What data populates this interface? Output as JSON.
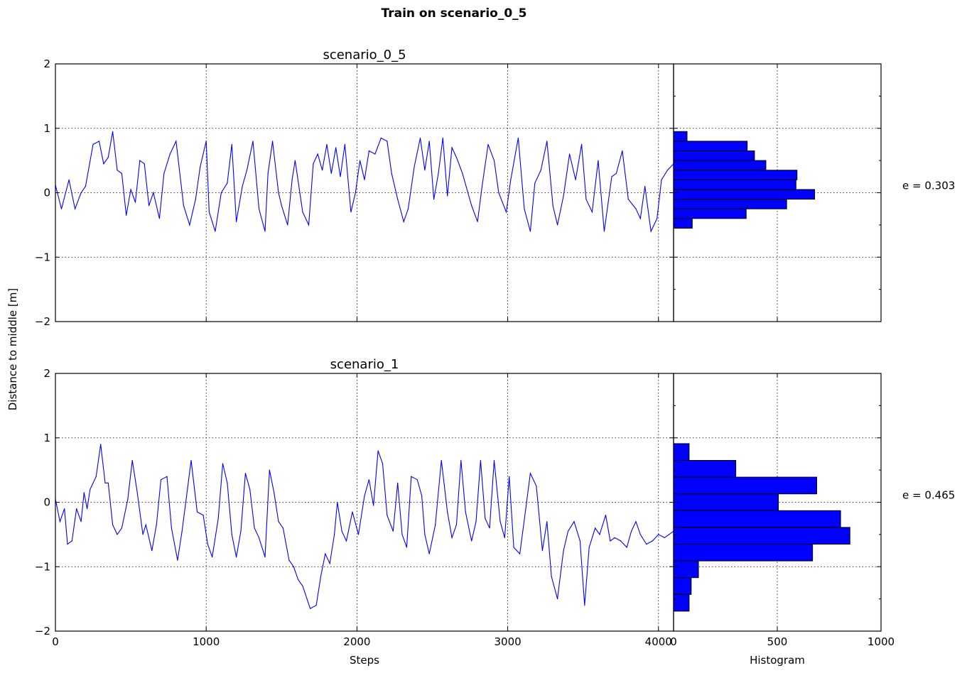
{
  "figure_title": "Train on scenario_0_5",
  "ylabel": "Distance to middle [m]",
  "colors": {
    "line": "#0000ff",
    "bar": "#0000ff",
    "edge": "#000000"
  },
  "chart_data": [
    {
      "type": "line",
      "title": "scenario_0_5",
      "xlabel": "",
      "xlim": [
        0,
        4100
      ],
      "ylim": [
        -2,
        2
      ],
      "xticks": [
        0,
        1000,
        2000,
        3000,
        4000
      ],
      "xtick_labels": [
        "",
        "",
        "",
        "",
        ""
      ],
      "yticks": [
        -2,
        -1,
        0,
        1,
        2
      ],
      "ytick_labels": [
        "−2",
        "−1",
        "0",
        "1",
        "2"
      ],
      "grid": true,
      "series": [
        {
          "x": [
            0,
            40,
            90,
            130,
            170,
            200,
            250,
            290,
            320,
            350,
            380,
            410,
            440,
            470,
            500,
            530,
            560,
            590,
            620,
            650,
            690,
            720,
            760,
            800,
            850,
            890,
            930,
            960,
            1000,
            1020,
            1060,
            1100,
            1140,
            1170,
            1200,
            1240,
            1270,
            1310,
            1350,
            1390,
            1410,
            1440,
            1480,
            1500,
            1540,
            1570,
            1590,
            1640,
            1680,
            1710,
            1740,
            1770,
            1800,
            1830,
            1860,
            1890,
            1920,
            1960,
            1990,
            2020,
            2050,
            2080,
            2120,
            2160,
            2200,
            2230,
            2270,
            2310,
            2340,
            2380,
            2420,
            2450,
            2480,
            2510,
            2540,
            2570,
            2600,
            2630,
            2660,
            2700,
            2760,
            2800,
            2830,
            2870,
            2910,
            2940,
            2990,
            3020,
            3070,
            3110,
            3150,
            3180,
            3220,
            3260,
            3300,
            3330,
            3370,
            3410,
            3450,
            3490,
            3520,
            3560,
            3600,
            3640,
            3690,
            3720,
            3760,
            3800,
            3850,
            3880,
            3910,
            3950,
            3990,
            4020,
            4060,
            4100
          ],
          "y": [
            0.12,
            -0.25,
            0.2,
            -0.25,
            0.0,
            0.1,
            0.75,
            0.8,
            0.45,
            0.55,
            0.95,
            0.35,
            0.3,
            -0.35,
            0.05,
            -0.15,
            0.5,
            0.45,
            -0.2,
            0.0,
            -0.4,
            0.3,
            0.6,
            0.8,
            -0.2,
            -0.5,
            -0.1,
            0.4,
            0.8,
            -0.3,
            -0.6,
            0.0,
            0.15,
            0.75,
            -0.45,
            0.1,
            0.35,
            0.8,
            -0.25,
            -0.6,
            0.3,
            0.8,
            0.0,
            -0.2,
            -0.5,
            0.2,
            0.5,
            -0.3,
            -0.5,
            0.45,
            0.6,
            0.35,
            0.75,
            0.3,
            0.7,
            0.25,
            0.75,
            -0.3,
            0.0,
            0.5,
            0.2,
            0.65,
            0.6,
            0.85,
            0.8,
            0.3,
            -0.1,
            -0.45,
            -0.25,
            0.4,
            0.85,
            0.35,
            0.8,
            -0.1,
            0.3,
            0.85,
            -0.05,
            0.7,
            0.55,
            0.3,
            -0.2,
            -0.45,
            0.1,
            0.75,
            0.5,
            0.0,
            -0.3,
            0.2,
            0.85,
            -0.25,
            -0.6,
            0.15,
            0.35,
            0.8,
            -0.2,
            -0.5,
            -0.05,
            0.6,
            0.2,
            0.75,
            -0.1,
            -0.3,
            0.5,
            -0.6,
            0.25,
            0.3,
            0.65,
            -0.1,
            -0.25,
            -0.4,
            0.1,
            -0.6,
            -0.4,
            0.2,
            0.35,
            0.45
          ]
        }
      ]
    },
    {
      "type": "bar",
      "orientation": "horizontal",
      "title": "",
      "xlim": [
        0,
        1000
      ],
      "ylim": [
        -2,
        2
      ],
      "xticks": [
        0,
        500,
        1000
      ],
      "xtick_labels": [
        "",
        "",
        ""
      ],
      "grid": true,
      "bins": [
        [
          0.8,
          0.95
        ],
        [
          0.65,
          0.8
        ],
        [
          0.5,
          0.65
        ],
        [
          0.35,
          0.5
        ],
        [
          0.2,
          0.35
        ],
        [
          0.05,
          0.2
        ],
        [
          -0.1,
          0.05
        ],
        [
          -0.25,
          -0.1
        ],
        [
          -0.4,
          -0.25
        ],
        [
          -0.55,
          -0.4
        ],
        [
          -0.7,
          -0.55
        ]
      ],
      "values": [
        65,
        355,
        390,
        445,
        595,
        590,
        680,
        545,
        350,
        90,
        0
      ],
      "annotation": "e = 0.303"
    },
    {
      "type": "line",
      "title": "scenario_1",
      "xlabel": "Steps",
      "xlim": [
        0,
        4100
      ],
      "ylim": [
        -2,
        2
      ],
      "xticks": [
        0,
        1000,
        2000,
        3000,
        4000
      ],
      "xtick_labels": [
        "0",
        "1000",
        "2000",
        "3000",
        "4000"
      ],
      "yticks": [
        -2,
        -1,
        0,
        1,
        2
      ],
      "ytick_labels": [
        "−2",
        "−1",
        "0",
        "1",
        "2"
      ],
      "grid": true,
      "series": [
        {
          "x": [
            0,
            30,
            60,
            80,
            110,
            140,
            170,
            190,
            210,
            230,
            270,
            300,
            330,
            350,
            380,
            410,
            440,
            480,
            510,
            540,
            580,
            600,
            640,
            670,
            700,
            740,
            770,
            810,
            840,
            870,
            900,
            940,
            980,
            1010,
            1040,
            1080,
            1110,
            1140,
            1170,
            1200,
            1230,
            1260,
            1290,
            1320,
            1350,
            1390,
            1420,
            1450,
            1480,
            1510,
            1550,
            1580,
            1610,
            1640,
            1690,
            1730,
            1760,
            1790,
            1820,
            1850,
            1870,
            1900,
            1930,
            1970,
            2010,
            2050,
            2080,
            2110,
            2140,
            2170,
            2200,
            2240,
            2270,
            2300,
            2330,
            2360,
            2400,
            2430,
            2450,
            2480,
            2520,
            2560,
            2600,
            2630,
            2660,
            2690,
            2720,
            2760,
            2790,
            2820,
            2850,
            2880,
            2910,
            2950,
            2980,
            3010,
            3040,
            3080,
            3120,
            3150,
            3190,
            3230,
            3260,
            3290,
            3330,
            3370,
            3400,
            3440,
            3480,
            3510,
            3540,
            3580,
            3610,
            3650,
            3680,
            3710,
            3750,
            3790,
            3820,
            3850,
            3880,
            3920,
            3960,
            4000,
            4040,
            4070,
            4100
          ],
          "y": [
            0.05,
            -0.3,
            -0.1,
            -0.65,
            -0.6,
            -0.1,
            -0.3,
            0.15,
            -0.1,
            0.2,
            0.4,
            0.9,
            0.3,
            0.3,
            -0.35,
            -0.5,
            -0.4,
            0.05,
            0.65,
            0.2,
            -0.5,
            -0.35,
            -0.75,
            -0.35,
            0.35,
            0.4,
            -0.4,
            -0.9,
            -0.45,
            0.1,
            0.65,
            -0.15,
            -0.2,
            -0.65,
            -0.85,
            -0.25,
            0.6,
            0.3,
            -0.5,
            -0.85,
            -0.45,
            0.45,
            0.2,
            -0.4,
            -0.55,
            -0.85,
            0.5,
            0.15,
            -0.3,
            -0.4,
            -0.9,
            -1.0,
            -1.2,
            -1.3,
            -1.65,
            -1.6,
            -1.15,
            -0.8,
            -0.95,
            -0.5,
            0.0,
            -0.45,
            -0.6,
            -0.15,
            -0.5,
            0.1,
            0.35,
            -0.05,
            0.8,
            0.6,
            -0.2,
            -0.45,
            0.3,
            -0.5,
            -0.7,
            0.4,
            0.35,
            0.1,
            -0.5,
            -0.8,
            -0.35,
            0.65,
            -0.15,
            -0.55,
            -0.35,
            0.65,
            -0.15,
            -0.6,
            -0.3,
            0.65,
            -0.25,
            -0.4,
            0.65,
            -0.3,
            -0.55,
            0.4,
            -0.7,
            -0.8,
            -0.1,
            0.45,
            0.25,
            -0.75,
            -0.3,
            -1.15,
            -1.5,
            -0.75,
            -0.45,
            -0.3,
            -0.6,
            -1.6,
            -0.7,
            -0.4,
            -0.5,
            -0.2,
            -0.6,
            -0.55,
            -0.6,
            -0.7,
            -0.45,
            -0.3,
            -0.5,
            -0.65,
            -0.6,
            -0.5,
            -0.55,
            -0.5,
            -0.45
          ]
        }
      ]
    },
    {
      "type": "bar",
      "orientation": "horizontal",
      "title": "",
      "xlabel": "Histogram",
      "xlim": [
        0,
        1000
      ],
      "ylim": [
        -2,
        2
      ],
      "xticks": [
        0,
        500,
        1000
      ],
      "xtick_labels": [
        "0",
        "500",
        "1000"
      ],
      "grid": true,
      "bins": [
        [
          0.65,
          0.91
        ],
        [
          0.39,
          0.65
        ],
        [
          0.13,
          0.39
        ],
        [
          -0.13,
          0.13
        ],
        [
          -0.39,
          -0.13
        ],
        [
          -0.65,
          -0.39
        ],
        [
          -0.91,
          -0.65
        ],
        [
          -1.17,
          -0.91
        ],
        [
          -1.43,
          -1.17
        ],
        [
          -1.69,
          -1.43
        ]
      ],
      "values": [
        75,
        300,
        690,
        505,
        805,
        850,
        670,
        120,
        85,
        75
      ],
      "annotation": "e = 0.465"
    }
  ]
}
